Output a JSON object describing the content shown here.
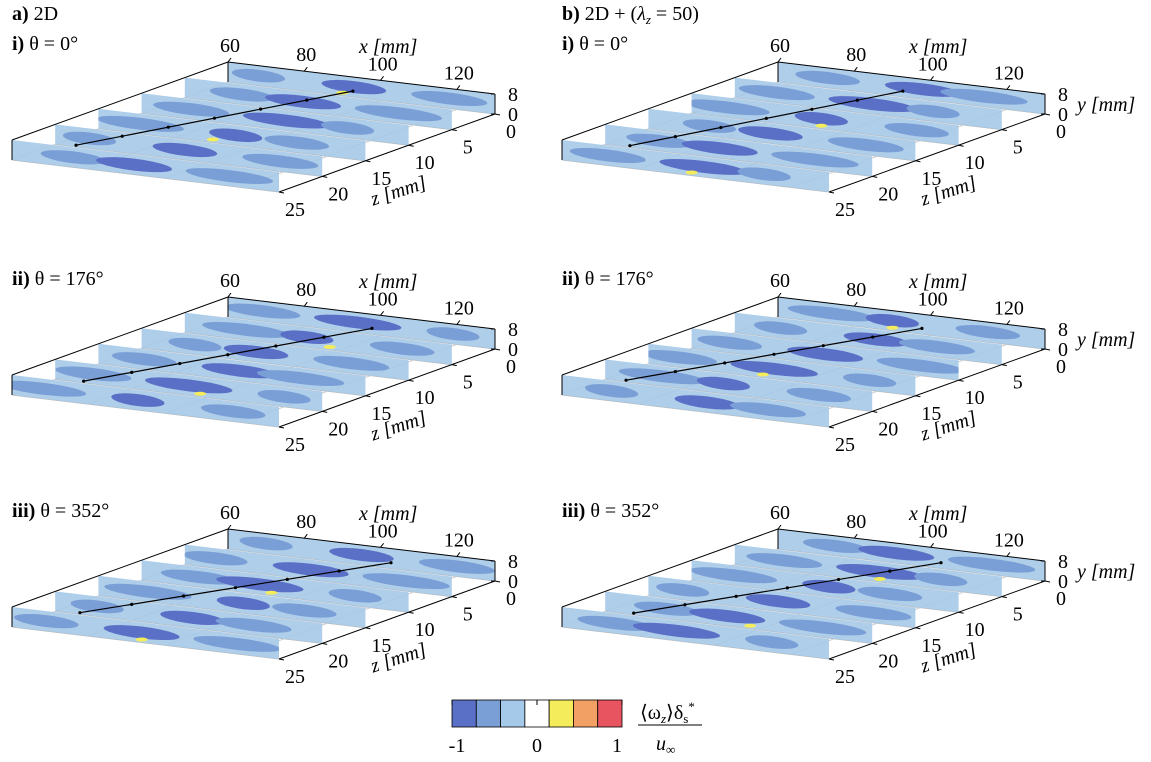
{
  "chart_data": [
    {
      "type": "surface3d",
      "group_label": "a)",
      "group_title": [
        "2D"
      ],
      "panel_label": "i)",
      "panel_title": "θ = 0°",
      "xlabel": "x [mm]",
      "zlabel": "z [mm]",
      "xlim": [
        60,
        130
      ],
      "xticks": [
        60,
        80,
        100,
        120
      ],
      "zlim": [
        0,
        25
      ],
      "zticks": [
        0,
        5,
        10,
        15,
        20,
        25
      ],
      "ylim": [
        0,
        8
      ],
      "yticks": [
        0,
        8
      ]
    },
    {
      "type": "surface3d",
      "group_label": "b)",
      "group_title": [
        "2D + (",
        "λ",
        "z",
        " = 50)"
      ],
      "panel_label": "i)",
      "panel_title": "θ = 0°",
      "xlabel": "x [mm]",
      "zlabel": "z [mm]",
      "ylabel": "y [mm]",
      "xlim": [
        60,
        130
      ],
      "xticks": [
        60,
        80,
        100,
        120
      ],
      "zlim": [
        0,
        25
      ],
      "zticks": [
        0,
        5,
        10,
        15,
        20,
        25
      ],
      "ylim": [
        0,
        8
      ],
      "yticks": [
        0,
        8
      ]
    },
    {
      "type": "surface3d",
      "panel_label": "ii)",
      "panel_title": "θ = 176°",
      "xlabel": "x [mm]",
      "zlabel": "z [mm]",
      "xlim": [
        60,
        130
      ],
      "xticks": [
        60,
        80,
        100,
        120
      ],
      "zlim": [
        0,
        25
      ],
      "zticks": [
        0,
        5,
        10,
        15,
        20,
        25
      ],
      "ylim": [
        0,
        8
      ],
      "yticks": [
        0,
        8
      ]
    },
    {
      "type": "surface3d",
      "panel_label": "ii)",
      "panel_title": "θ = 176°",
      "xlabel": "x [mm]",
      "zlabel": "z [mm]",
      "ylabel": "y [mm]",
      "xlim": [
        60,
        130
      ],
      "xticks": [
        60,
        80,
        100,
        120
      ],
      "zlim": [
        0,
        25
      ],
      "zticks": [
        0,
        5,
        10,
        15,
        20,
        25
      ],
      "ylim": [
        0,
        8
      ],
      "yticks": [
        0,
        8
      ]
    },
    {
      "type": "surface3d",
      "panel_label": "iii)",
      "panel_title": "θ = 352°",
      "xlabel": "x [mm]",
      "zlabel": "z [mm]",
      "xlim": [
        60,
        130
      ],
      "xticks": [
        60,
        80,
        100,
        120
      ],
      "zlim": [
        0,
        25
      ],
      "zticks": [
        0,
        5,
        10,
        15,
        20,
        25
      ],
      "ylim": [
        0,
        8
      ],
      "yticks": [
        0,
        8
      ]
    },
    {
      "type": "surface3d",
      "panel_label": "iii)",
      "panel_title": "θ = 352°",
      "xlabel": "x [mm]",
      "zlabel": "z [mm]",
      "ylabel": "y [mm]",
      "xlim": [
        60,
        130
      ],
      "xticks": [
        60,
        80,
        100,
        120
      ],
      "zlim": [
        0,
        25
      ],
      "zticks": [
        0,
        5,
        10,
        15,
        20,
        25
      ],
      "ylim": [
        0,
        8
      ],
      "yticks": [
        0,
        8
      ]
    }
  ],
  "colorbar": {
    "colors": [
      "#5a6fc6",
      "#7a9ed6",
      "#a5c9e8",
      "#ffffff",
      "#f4ec5a",
      "#f3a064",
      "#e8545f"
    ],
    "lim": [
      -1,
      1
    ],
    "ticks": [
      -1,
      0,
      1
    ],
    "numerator": [
      "⟨ω",
      "z",
      "⟩δ",
      "s",
      "*"
    ],
    "denominator": [
      "u",
      "∞"
    ]
  }
}
